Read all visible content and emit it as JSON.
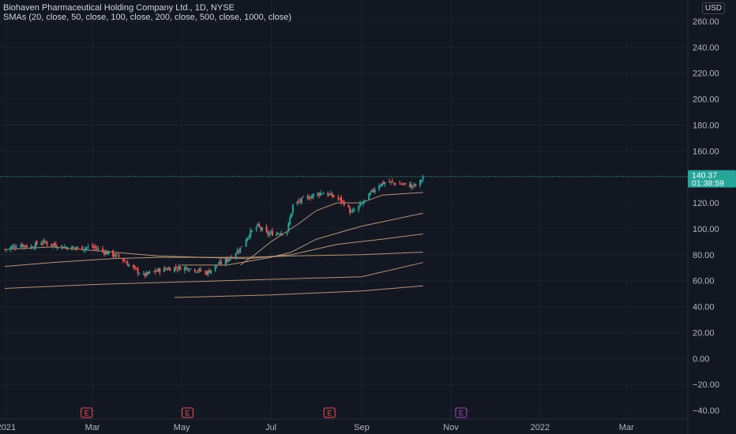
{
  "title": "Biohaven Pharmaceutical Holding Company Ltd., 1D, NYSE",
  "indicator": "SMAs (20, close, 50, close, 100, close, 200, close, 500, close, 1000, close)",
  "currency": "USD",
  "price_label": {
    "value": "140.37",
    "countdown": "01:38:59"
  },
  "colors": {
    "background": "#131722",
    "grid": "#1e222d",
    "text": "#b2b5be",
    "up": "#26a69a",
    "down": "#ef5350",
    "price_line": "#26a69a",
    "sma": "#c8a27c",
    "earnings": "#ef5350",
    "earnings_future": "#ab47bc"
  },
  "chart_data": {
    "type": "candlestick",
    "ylim": [
      -40,
      260
    ],
    "yticks": [
      "260.00",
      "240.00",
      "220.00",
      "200.00",
      "180.00",
      "160.00",
      "140.00",
      "120.00",
      "100.00",
      "80.00",
      "60.00",
      "40.00",
      "20.00",
      "0.00",
      "−20.00",
      "−40.00"
    ],
    "ytick_values": [
      260,
      240,
      220,
      200,
      180,
      160,
      140,
      120,
      100,
      80,
      60,
      40,
      20,
      0,
      -20,
      -40
    ],
    "xlim": [
      "2020-12-31",
      "2022-04-12"
    ],
    "xticks": [
      {
        "label": "2021",
        "date": "2021-01-01"
      },
      {
        "label": "Mar",
        "date": "2021-03-01"
      },
      {
        "label": "May",
        "date": "2021-05-01"
      },
      {
        "label": "Jul",
        "date": "2021-07-01"
      },
      {
        "label": "Sep",
        "date": "2021-09-01"
      },
      {
        "label": "Nov",
        "date": "2021-11-01"
      },
      {
        "label": "2022",
        "date": "2022-01-01"
      },
      {
        "label": "Mar",
        "date": "2022-03-01"
      }
    ],
    "close_path": [
      [
        "2020-12-31",
        84
      ],
      [
        "2021-01-10",
        88
      ],
      [
        "2021-01-18",
        86
      ],
      [
        "2021-01-25",
        90
      ],
      [
        "2021-02-01",
        88
      ],
      [
        "2021-02-10",
        86
      ],
      [
        "2021-02-20",
        85
      ],
      [
        "2021-03-01",
        86
      ],
      [
        "2021-03-10",
        82
      ],
      [
        "2021-03-20",
        78
      ],
      [
        "2021-03-28",
        70
      ],
      [
        "2021-04-05",
        64
      ],
      [
        "2021-04-15",
        68
      ],
      [
        "2021-04-25",
        70
      ],
      [
        "2021-05-05",
        70
      ],
      [
        "2021-05-12",
        68
      ],
      [
        "2021-05-18",
        66
      ],
      [
        "2021-05-25",
        72
      ],
      [
        "2021-06-01",
        76
      ],
      [
        "2021-06-10",
        85
      ],
      [
        "2021-06-16",
        96
      ],
      [
        "2021-06-22",
        102
      ],
      [
        "2021-06-28",
        96
      ],
      [
        "2021-07-05",
        97
      ],
      [
        "2021-07-12",
        98
      ],
      [
        "2021-07-16",
        118
      ],
      [
        "2021-07-22",
        122
      ],
      [
        "2021-07-30",
        126
      ],
      [
        "2021-08-05",
        128
      ],
      [
        "2021-08-10",
        126
      ],
      [
        "2021-08-15",
        124
      ],
      [
        "2021-08-20",
        120
      ],
      [
        "2021-08-25",
        112
      ],
      [
        "2021-08-31",
        118
      ],
      [
        "2021-09-05",
        124
      ],
      [
        "2021-09-12",
        134
      ],
      [
        "2021-09-18",
        136
      ],
      [
        "2021-09-25",
        135
      ],
      [
        "2021-10-01",
        134
      ],
      [
        "2021-10-06",
        133
      ],
      [
        "2021-10-10",
        134
      ],
      [
        "2021-10-13",
        140.37
      ]
    ],
    "series": [
      {
        "name": "SMA 20",
        "points": [
          [
            "2021-06-10",
            72
          ],
          [
            "2021-06-20",
            80
          ],
          [
            "2021-07-01",
            90
          ],
          [
            "2021-07-20",
            104
          ],
          [
            "2021-08-01",
            114
          ],
          [
            "2021-08-15",
            120
          ],
          [
            "2021-09-01",
            120
          ],
          [
            "2021-09-15",
            126
          ],
          [
            "2021-10-13",
            128
          ]
        ]
      },
      {
        "name": "SMA 50",
        "points": [
          [
            "2021-05-01",
            72
          ],
          [
            "2021-06-01",
            72
          ],
          [
            "2021-07-01",
            78
          ],
          [
            "2021-07-15",
            82
          ],
          [
            "2021-08-01",
            92
          ],
          [
            "2021-09-01",
            102
          ],
          [
            "2021-10-13",
            112
          ]
        ]
      },
      {
        "name": "SMA 100",
        "points": [
          [
            "2020-12-31",
            84
          ],
          [
            "2021-02-01",
            86
          ],
          [
            "2021-03-15",
            82
          ],
          [
            "2021-04-15",
            79
          ],
          [
            "2021-05-15",
            78
          ],
          [
            "2021-06-15",
            77
          ],
          [
            "2021-07-15",
            80
          ],
          [
            "2021-08-15",
            88
          ],
          [
            "2021-09-15",
            92
          ],
          [
            "2021-10-13",
            96
          ]
        ]
      },
      {
        "name": "SMA 200",
        "points": [
          [
            "2020-12-31",
            71
          ],
          [
            "2021-02-01",
            74
          ],
          [
            "2021-03-15",
            77
          ],
          [
            "2021-04-15",
            78
          ],
          [
            "2021-05-15",
            78
          ],
          [
            "2021-06-15",
            78
          ],
          [
            "2021-07-15",
            79
          ],
          [
            "2021-09-01",
            80
          ],
          [
            "2021-10-13",
            82
          ]
        ]
      },
      {
        "name": "SMA 500",
        "points": [
          [
            "2020-12-31",
            54
          ],
          [
            "2021-03-01",
            57
          ],
          [
            "2021-05-01",
            59
          ],
          [
            "2021-07-01",
            61
          ],
          [
            "2021-09-01",
            63
          ],
          [
            "2021-10-13",
            74
          ]
        ]
      },
      {
        "name": "SMA 1000",
        "points": [
          [
            "2021-04-26",
            47
          ],
          [
            "2021-07-01",
            49
          ],
          [
            "2021-09-01",
            52
          ],
          [
            "2021-10-13",
            56
          ]
        ]
      }
    ],
    "earnings_markers": [
      {
        "label": "E",
        "date": "2021-02-25",
        "future": false
      },
      {
        "label": "E",
        "date": "2021-05-05",
        "future": false
      },
      {
        "label": "E",
        "date": "2021-08-10",
        "future": false
      },
      {
        "label": "E",
        "date": "2021-11-08",
        "future": true
      }
    ],
    "current_price": 140.37
  }
}
